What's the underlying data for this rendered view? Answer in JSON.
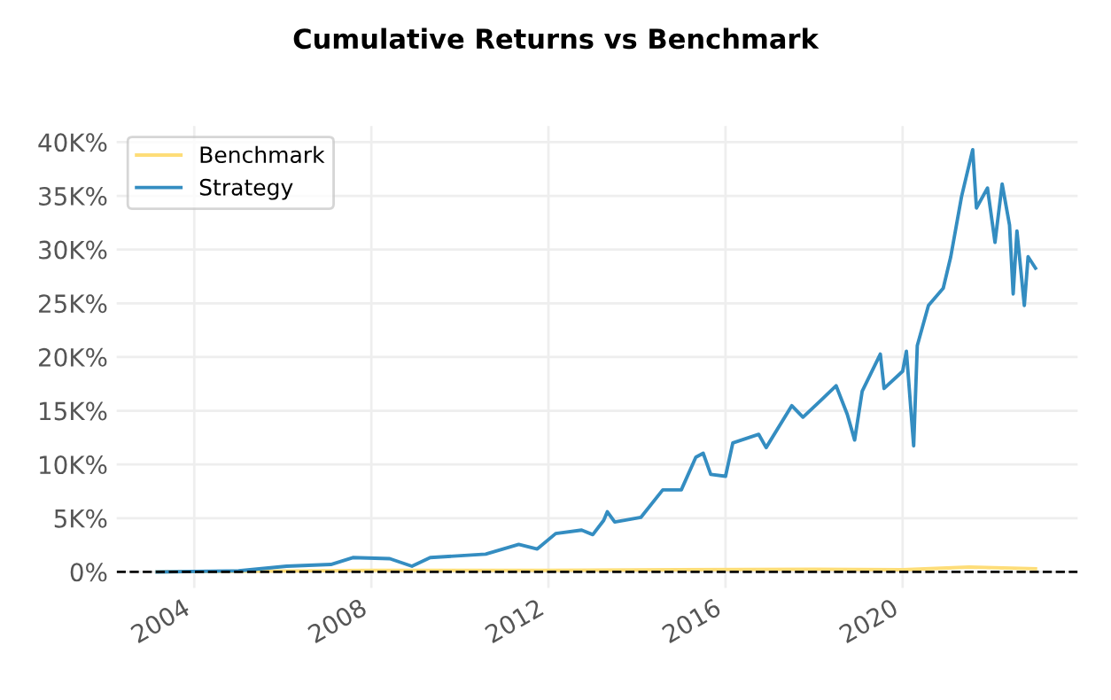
{
  "chart_data": {
    "type": "line",
    "title": "Cumulative Returns vs Benchmark",
    "xlim": [
      "2002-04-01",
      "2023-12-15"
    ],
    "xticks": [
      "2004",
      "2008",
      "2012",
      "2016",
      "2020"
    ],
    "ylim": [
      -1500,
      41500
    ],
    "yticks": [
      {
        "value": 0,
        "label": "0%"
      },
      {
        "value": 5000,
        "label": "5K%"
      },
      {
        "value": 10000,
        "label": "10K%"
      },
      {
        "value": 15000,
        "label": "15K%"
      },
      {
        "value": 20000,
        "label": "20K%"
      },
      {
        "value": 25000,
        "label": "25K%"
      },
      {
        "value": 30000,
        "label": "30K%"
      },
      {
        "value": 35000,
        "label": "35K%"
      },
      {
        "value": 40000,
        "label": "40K%"
      }
    ],
    "grid": true,
    "legend": "top left",
    "line_style": "solid",
    "marker": "none",
    "ref_lines": [
      {
        "axis": "y",
        "value": 0,
        "label": null,
        "color": "#000000",
        "line_style": "dashed"
      }
    ],
    "series": [
      {
        "name": "Benchmark",
        "color": "#fedd78",
        "x": [
          "2003-03",
          "2008-01",
          "2012-01",
          "2018-01",
          "2020-01",
          "2021-07",
          "2023-01"
        ],
        "values": [
          0,
          150,
          150,
          250,
          200,
          450,
          300
        ]
      },
      {
        "name": "Strategy",
        "color": "#348dc1",
        "x": [
          "2003-03",
          "2005-01",
          "2006-02",
          "2007-02",
          "2007-08",
          "2008-06",
          "2008-12",
          "2009-05",
          "2010-08",
          "2011-05",
          "2011-10",
          "2012-03",
          "2012-10",
          "2013-01",
          "2013-04",
          "2013-05",
          "2013-07",
          "2014-02",
          "2014-08",
          "2015-01",
          "2015-05",
          "2015-07",
          "2015-09",
          "2016-01",
          "2016-03",
          "2016-10",
          "2016-12",
          "2017-07",
          "2017-10",
          "2018-03",
          "2018-07",
          "2018-10",
          "2018-12",
          "2019-02",
          "2019-07",
          "2019-08",
          "2020-01",
          "2020-02",
          "2020-04",
          "2020-05",
          "2020-08",
          "2020-12",
          "2021-02",
          "2021-05",
          "2021-08",
          "2021-09",
          "2021-12",
          "2022-02",
          "2022-04",
          "2022-06",
          "2022-07",
          "2022-08",
          "2022-10",
          "2022-11",
          "2023-01"
        ],
        "values": [
          0,
          100,
          530,
          690,
          1330,
          1230,
          530,
          1330,
          1650,
          2560,
          2130,
          3570,
          3890,
          3470,
          4800,
          5600,
          4640,
          5070,
          7630,
          7630,
          10670,
          11040,
          9070,
          8900,
          12000,
          12800,
          11570,
          15470,
          14400,
          16000,
          17330,
          14670,
          12270,
          16800,
          20270,
          17070,
          18670,
          20530,
          11730,
          21070,
          24800,
          26400,
          29330,
          34930,
          39300,
          33870,
          35730,
          30670,
          36100,
          32270,
          25870,
          31730,
          24800,
          29330,
          28270
        ]
      }
    ]
  }
}
